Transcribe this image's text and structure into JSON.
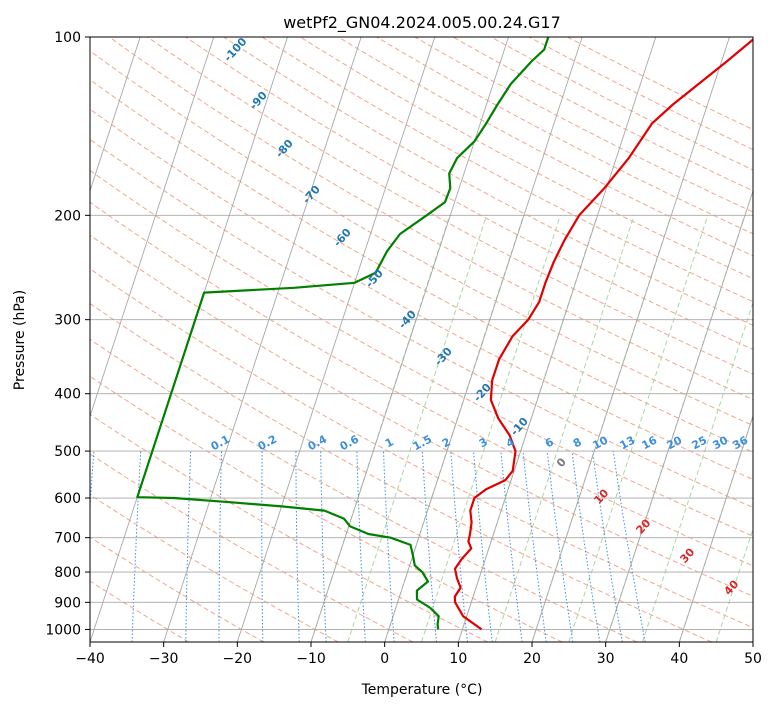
{
  "chart_data": {
    "type": "skewt",
    "title": "wetPf2_GN04.2024.005.00.24.G17",
    "xlabel": "Temperature (°C)",
    "ylabel": "Pressure (hPa)",
    "xlim": [
      -40,
      50
    ],
    "ylim": [
      1050,
      100
    ],
    "y_scale": "log",
    "grid": true,
    "x_ticks": [
      -40,
      -30,
      -20,
      -10,
      0,
      10,
      20,
      30,
      40,
      50
    ],
    "y_ticks": [
      100,
      200,
      300,
      400,
      500,
      600,
      700,
      800,
      900,
      1000
    ],
    "series": [
      {
        "color": "#e00000",
        "points": [
          {
            "p": 1000,
            "t": 12.6
          },
          {
            "p": 950,
            "t": 9.5
          },
          {
            "p": 900,
            "t": 7.8
          },
          {
            "p": 880,
            "t": 7.5
          },
          {
            "p": 850,
            "t": 7.9
          },
          {
            "p": 820,
            "t": 7.0
          },
          {
            "p": 790,
            "t": 6.3
          },
          {
            "p": 760,
            "t": 6.8
          },
          {
            "p": 730,
            "t": 7.6
          },
          {
            "p": 710,
            "t": 6.9
          },
          {
            "p": 690,
            "t": 6.8
          },
          {
            "p": 660,
            "t": 6.5
          },
          {
            "p": 630,
            "t": 5.8
          },
          {
            "p": 600,
            "t": 5.8
          },
          {
            "p": 580,
            "t": 7.0
          },
          {
            "p": 560,
            "t": 9.2
          },
          {
            "p": 540,
            "t": 9.8
          },
          {
            "p": 500,
            "t": 9.3
          },
          {
            "p": 470,
            "t": 7.8
          },
          {
            "p": 440,
            "t": 5.5
          },
          {
            "p": 410,
            "t": 3.7
          },
          {
            "p": 380,
            "t": 3.0
          },
          {
            "p": 350,
            "t": 3.0
          },
          {
            "p": 320,
            "t": 3.8
          },
          {
            "p": 300,
            "t": 5.2
          },
          {
            "p": 280,
            "t": 5.9
          },
          {
            "p": 260,
            "t": 5.9
          },
          {
            "p": 240,
            "t": 6.1
          },
          {
            "p": 220,
            "t": 6.6
          },
          {
            "p": 200,
            "t": 7.5
          },
          {
            "p": 180,
            "t": 9.7
          },
          {
            "p": 160,
            "t": 11.7
          },
          {
            "p": 140,
            "t": 13.3
          },
          {
            "p": 130,
            "t": 15.3
          },
          {
            "p": 120,
            "t": 17.9
          },
          {
            "p": 110,
            "t": 20.7
          },
          {
            "p": 100,
            "t": 23.6
          }
        ]
      },
      {
        "color": "#008000",
        "points": [
          {
            "p": 1000,
            "t": 6.7
          },
          {
            "p": 980,
            "t": 6.4
          },
          {
            "p": 950,
            "t": 6.2
          },
          {
            "p": 920,
            "t": 4.7
          },
          {
            "p": 890,
            "t": 2.5
          },
          {
            "p": 860,
            "t": 2.1
          },
          {
            "p": 830,
            "t": 3.2
          },
          {
            "p": 800,
            "t": 2.0
          },
          {
            "p": 780,
            "t": 0.7
          },
          {
            "p": 750,
            "t": 0.0
          },
          {
            "p": 720,
            "t": -0.8
          },
          {
            "p": 700,
            "t": -3.8
          },
          {
            "p": 690,
            "t": -7.0
          },
          {
            "p": 670,
            "t": -9.8
          },
          {
            "p": 650,
            "t": -11.0
          },
          {
            "p": 630,
            "t": -14.0
          },
          {
            "p": 620,
            "t": -20.0
          },
          {
            "p": 610,
            "t": -27.0
          },
          {
            "p": 600,
            "t": -35.0
          },
          {
            "p": 598,
            "t": -40.0
          },
          {
            "p": 270,
            "t": -40.0
          },
          {
            "p": 268,
            "t": -35.0
          },
          {
            "p": 265,
            "t": -28.0
          },
          {
            "p": 260,
            "t": -20.0
          },
          {
            "p": 250,
            "t": -17.6
          },
          {
            "p": 230,
            "t": -17.0
          },
          {
            "p": 215,
            "t": -16.0
          },
          {
            "p": 200,
            "t": -13.2
          },
          {
            "p": 190,
            "t": -11.3
          },
          {
            "p": 180,
            "t": -11.2
          },
          {
            "p": 170,
            "t": -12.0
          },
          {
            "p": 160,
            "t": -11.6
          },
          {
            "p": 150,
            "t": -10.0
          },
          {
            "p": 140,
            "t": -9.2
          },
          {
            "p": 130,
            "t": -8.5
          },
          {
            "p": 120,
            "t": -7.6
          },
          {
            "p": 110,
            "t": -5.8
          },
          {
            "p": 105,
            "t": -4.6
          },
          {
            "p": 100,
            "t": -4.6
          }
        ]
      }
    ],
    "dry_adiabat_labels": [
      "-100",
      "-90",
      "-80",
      "-70",
      "-60",
      "-50",
      "-40",
      "-30",
      "-20",
      "-10"
    ],
    "mixing_ratio_labels": [
      "0.1",
      "0.2",
      "0.4",
      "0.6",
      "1",
      "1.5",
      "2",
      "3",
      "4",
      "6",
      "8",
      "10",
      "13",
      "16",
      "20",
      "25",
      "30",
      "36"
    ],
    "moist_adiabat_labels": [
      "0",
      "10",
      "20",
      "30",
      "40"
    ],
    "colors": {
      "temperature": "#e00000",
      "dewpoint": "#008000",
      "isotherm_grid": "#a8a8a8",
      "dry_adiabat": "#f4a58a",
      "moist_adiabat": "#a9d7a3",
      "mixing_ratio": "#3a8fde",
      "dry_adiabat_label": "#1f77b4",
      "mixing_ratio_label": "#3a8fde",
      "moist_adiabat_label": "#d62728",
      "zero_label": "#777777"
    }
  }
}
